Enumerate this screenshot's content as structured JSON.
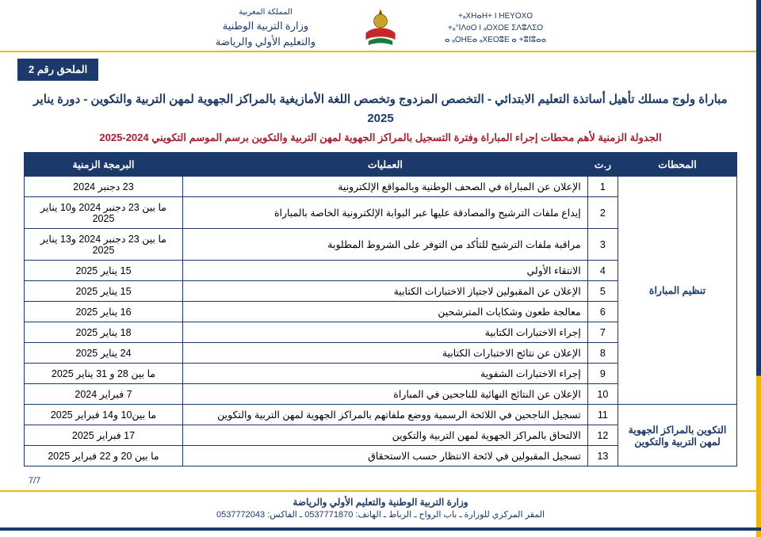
{
  "header": {
    "left_lines": [
      "+ₐXHⴰH+ I HEYOXO",
      "+ₐ°ⵏΛoO I ₐOXOE ΣΛⵓΛΣO",
      "ⴰ ₐOHEⴰ ₐXEOⵓE ⴰ +ⵓⵏⵓⴰⴰ"
    ],
    "right_lines": [
      "المملكة المغربية",
      "وزارة التربية الوطنية",
      "والتعليم الأولي والرياضة"
    ]
  },
  "badge": "الملحق رقم 2",
  "titles": {
    "main": "مباراة ولوج مسلك تأهيل أساتذة التعليم الابتدائي - التخصص المزدوج وتخصص اللغة الأمازيغية بالمراكز الجهوية لمهن التربية والتكوين - دورة يناير 2025",
    "sub": "الجدولة الزمنية لأهم محطات إجراء المباراة وفترة التسجيل بالمراكز الجهوية لمهن التربية والتكوين برسم الموسم التكويني 2024-2025"
  },
  "table": {
    "headers": {
      "station": "المحطات",
      "idx": "ر.ت",
      "op": "العمليات",
      "date": "البرمجة الزمنية"
    },
    "groups": [
      {
        "station": "تنظيم المباراة",
        "rows": [
          {
            "i": "1",
            "op": "الإعلان عن المباراة في الصحف الوطنية وبالمواقع الإلكترونية",
            "date": "23 دجنبر 2024"
          },
          {
            "i": "2",
            "op": "إيداع ملفات الترشيح والمصادقة عليها عبر البوابة الإلكترونية الخاصة بالمباراة",
            "date": "ما بين 23 دجنبر 2024 و10 يناير 2025"
          },
          {
            "i": "3",
            "op": "مراقبة ملفات الترشيح للتأكد من التوفر على الشروط المطلوبة",
            "date": "ما بين 23 دجنبر 2024 و13 يناير 2025"
          },
          {
            "i": "4",
            "op": "الانتقاء الأولي",
            "date": "15 يناير 2025"
          },
          {
            "i": "5",
            "op": "الإعلان عن المقبولين لاجتياز الاختبارات الكتابية",
            "date": "15 يناير 2025"
          },
          {
            "i": "6",
            "op": "معالجة طعون وشكايات المترشحين",
            "date": "16 يناير 2025"
          },
          {
            "i": "7",
            "op": "إجراء الاختبارات الكتابية",
            "date": "18 يناير 2025"
          },
          {
            "i": "8",
            "op": "الإعلان عن نتائج الاختبارات الكتابية",
            "date": "24 يناير 2025"
          },
          {
            "i": "9",
            "op": "إجراء الاختبارات الشفوية",
            "date": "ما بين 28 و 31 يناير 2025"
          },
          {
            "i": "10",
            "op": "الإعلان عن النتائج النهائية للناجحين في المباراة",
            "date": "7 فبراير 2024"
          }
        ]
      },
      {
        "station": "التكوين بالمراكز الجهوية لمهن التربية والتكوين",
        "rows": [
          {
            "i": "11",
            "op": "تسجيل الناجحين في اللائحة الرسمية ووضع ملفاتهم بالمراكز الجهوية لمهن التربية والتكوين",
            "date": "ما بين10 و14 فبراير 2025"
          },
          {
            "i": "12",
            "op": "الالتحاق بالمراكز الجهوية لمهن التربية والتكوين",
            "date": "17 فبراير 2025"
          },
          {
            "i": "13",
            "op": "تسجيل المقبولين في لائحة الانتظار حسب الاستحقاق",
            "date": "ما بين 20 و 22 فبراير 2025"
          }
        ]
      }
    ]
  },
  "page": "7/7",
  "footer": {
    "line1": "وزارة التربية الوطنية والتعليم الأولي والرياضة",
    "line2": "المقر المركزي للوزارة ـ باب الرواح ـ الرباط ـ الهاتف: 0537771870 ـ الفاكس: 0537772043"
  },
  "colors": {
    "navy": "#1b3a6b",
    "gold": "#f5b400",
    "red": "#aa1f2e"
  }
}
